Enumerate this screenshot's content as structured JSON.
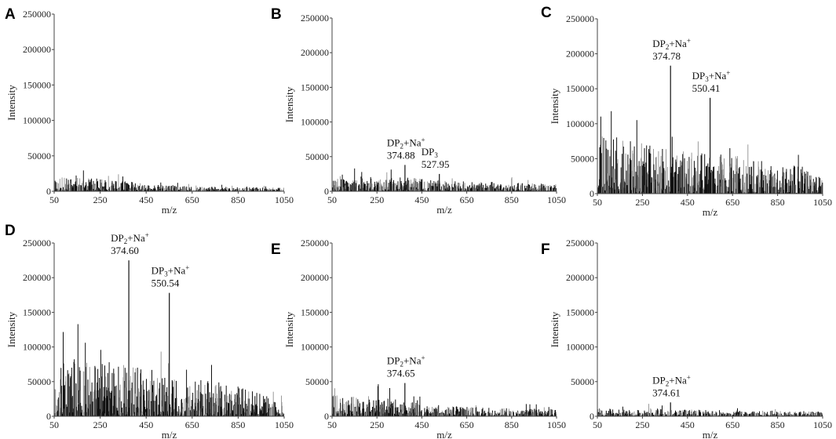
{
  "chart_data": [
    {
      "panel": "A",
      "type": "bar",
      "xlabel": "m/z",
      "ylabel": "Intensity",
      "xlim": [
        50,
        1050
      ],
      "ylim": [
        0,
        250000
      ],
      "xticks": [
        50,
        250,
        450,
        650,
        850,
        1050
      ],
      "yticks": [
        0,
        50000,
        100000,
        150000,
        200000,
        250000
      ],
      "noise_profile": [
        [
          50,
          20000
        ],
        [
          250,
          18000
        ],
        [
          450,
          11000
        ],
        [
          650,
          7000
        ],
        [
          850,
          6000
        ],
        [
          1050,
          5000
        ]
      ],
      "noise_seed": 11,
      "annotations": []
    },
    {
      "panel": "B",
      "type": "bar",
      "xlabel": "m/z",
      "ylabel": "Intensity",
      "xlim": [
        50,
        1050
      ],
      "ylim": [
        0,
        250000
      ],
      "xticks": [
        50,
        250,
        450,
        650,
        850,
        1050
      ],
      "yticks": [
        0,
        50000,
        100000,
        150000,
        200000,
        250000
      ],
      "noise_profile": [
        [
          50,
          18000
        ],
        [
          250,
          24000
        ],
        [
          450,
          18000
        ],
        [
          650,
          15000
        ],
        [
          850,
          13000
        ],
        [
          1050,
          10000
        ]
      ],
      "noise_seed": 23,
      "annotations": [
        {
          "x": 374.88,
          "y": 38000,
          "name": "DP",
          "sub": "2",
          "ion": "+Na",
          "charge": "+",
          "mz": "374.88"
        },
        {
          "x": 527.95,
          "y": 25000,
          "name": "DP",
          "sub": "3",
          "ion": "",
          "charge": "",
          "mz": "527.95"
        }
      ]
    },
    {
      "panel": "C",
      "type": "bar",
      "xlabel": "m/z",
      "ylabel": "Intensity",
      "xlim": [
        50,
        1050
      ],
      "ylim": [
        0,
        250000
      ],
      "xticks": [
        50,
        250,
        450,
        650,
        850,
        1050
      ],
      "yticks": [
        0,
        50000,
        100000,
        150000,
        200000,
        250000
      ],
      "noise_profile": [
        [
          50,
          85000
        ],
        [
          250,
          75000
        ],
        [
          450,
          60000
        ],
        [
          650,
          55000
        ],
        [
          850,
          45000
        ],
        [
          1050,
          35000
        ]
      ],
      "noise_seed": 37,
      "annotations": [
        {
          "x": 374.78,
          "y": 183000,
          "name": "DP",
          "sub": "2",
          "ion": "+Na",
          "charge": "+",
          "mz": "374.78"
        },
        {
          "x": 550.41,
          "y": 137000,
          "name": "DP",
          "sub": "3",
          "ion": "+Na",
          "charge": "+",
          "mz": "550.41"
        }
      ]
    },
    {
      "panel": "D",
      "type": "bar",
      "xlabel": "m/z",
      "ylabel": "Intensity",
      "xlim": [
        50,
        1050
      ],
      "ylim": [
        0,
        250000
      ],
      "xticks": [
        50,
        250,
        450,
        650,
        850,
        1050
      ],
      "yticks": [
        0,
        50000,
        100000,
        150000,
        200000,
        250000
      ],
      "noise_profile": [
        [
          50,
          90000
        ],
        [
          250,
          80000
        ],
        [
          450,
          70000
        ],
        [
          650,
          55000
        ],
        [
          850,
          45000
        ],
        [
          1050,
          20000
        ]
      ],
      "noise_seed": 53,
      "annotations": [
        {
          "x": 374.6,
          "y": 225000,
          "name": "DP",
          "sub": "2",
          "ion": "+Na",
          "charge": "+",
          "mz": "374.60"
        },
        {
          "x": 550.54,
          "y": 178000,
          "name": "DP",
          "sub": "3",
          "ion": "+Na",
          "charge": "+",
          "mz": "550.54"
        }
      ]
    },
    {
      "panel": "E",
      "type": "bar",
      "xlabel": "m/z",
      "ylabel": "Intensity",
      "xlim": [
        50,
        1050
      ],
      "ylim": [
        0,
        250000
      ],
      "xticks": [
        50,
        250,
        450,
        650,
        850,
        1050
      ],
      "yticks": [
        0,
        50000,
        100000,
        150000,
        200000,
        250000
      ],
      "noise_profile": [
        [
          50,
          32000
        ],
        [
          250,
          30000
        ],
        [
          450,
          18000
        ],
        [
          650,
          14000
        ],
        [
          850,
          12000
        ],
        [
          1050,
          10000
        ]
      ],
      "noise_seed": 71,
      "annotations": [
        {
          "x": 374.65,
          "y": 48000,
          "name": "DP",
          "sub": "2",
          "ion": "+Na",
          "charge": "+",
          "mz": "374.65"
        }
      ]
    },
    {
      "panel": "F",
      "type": "bar",
      "xlabel": "m/z",
      "ylabel": "Intensity",
      "xlim": [
        50,
        1050
      ],
      "ylim": [
        0,
        250000
      ],
      "xticks": [
        50,
        250,
        450,
        650,
        850,
        1050
      ],
      "yticks": [
        0,
        50000,
        100000,
        150000,
        200000,
        250000
      ],
      "noise_profile": [
        [
          50,
          11000
        ],
        [
          250,
          12000
        ],
        [
          450,
          10000
        ],
        [
          650,
          9000
        ],
        [
          850,
          8000
        ],
        [
          1050,
          7000
        ]
      ],
      "noise_seed": 89,
      "annotations": [
        {
          "x": 374.61,
          "y": 20000,
          "name": "DP",
          "sub": "2",
          "ion": "+Na",
          "charge": "+",
          "mz": "374.61"
        }
      ]
    }
  ],
  "colors": {
    "bar_dark": "#111111",
    "bar_gray": "#9a9a9a",
    "axis": "#444444"
  }
}
